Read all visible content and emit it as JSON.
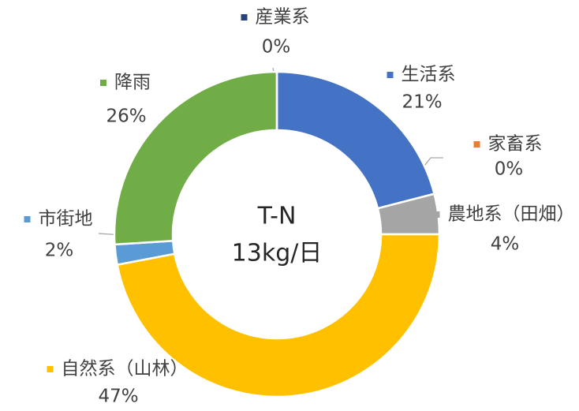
{
  "chart_data": {
    "type": "donut",
    "center_text": [
      "T-N",
      "13kg/日"
    ],
    "categories": [
      "生活系",
      "家畜系",
      "農地系（田畑）",
      "自然系（山林）",
      "市街地",
      "降雨",
      "産業系"
    ],
    "values": [
      21,
      0,
      4,
      47,
      2,
      26,
      0
    ],
    "value_labels": [
      "21%",
      "0%",
      "4%",
      "47%",
      "2%",
      "26%",
      "0%"
    ],
    "colors": [
      "#4472c4",
      "#ed7d31",
      "#a5a5a5",
      "#ffc000",
      "#5b9bd5",
      "#70ad47",
      "#264478"
    ]
  }
}
